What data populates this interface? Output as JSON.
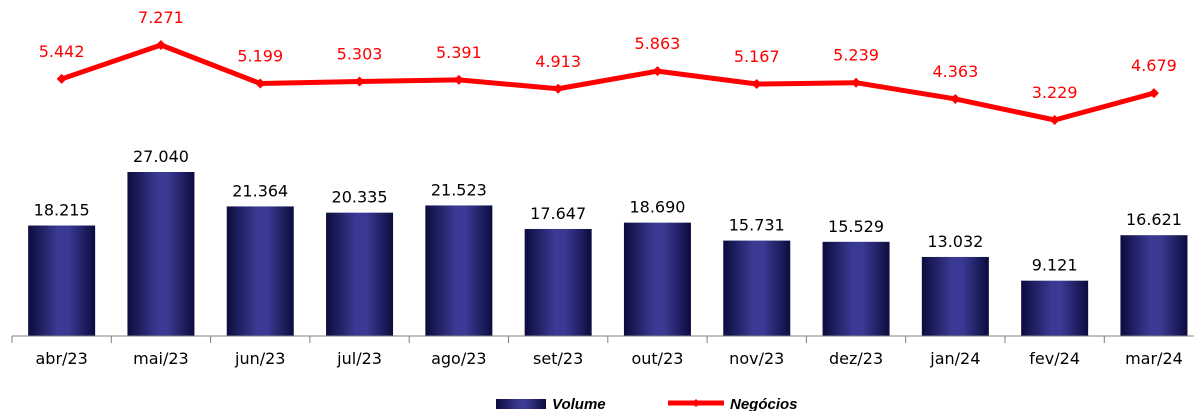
{
  "chart_data": {
    "type": "bar+line",
    "categories": [
      "abr/23",
      "mai/23",
      "jun/23",
      "jul/23",
      "ago/23",
      "set/23",
      "out/23",
      "nov/23",
      "dez/23",
      "jan/24",
      "fev/24",
      "mar/24"
    ],
    "series": [
      {
        "name": "Volume",
        "type": "bar",
        "color": "#2b2b7a",
        "values": [
          18215,
          27040,
          21364,
          20335,
          21523,
          17647,
          18690,
          15731,
          15529,
          13032,
          9121,
          16621
        ],
        "labels": [
          "18.215",
          "27.040",
          "21.364",
          "20.335",
          "21.523",
          "17.647",
          "18.690",
          "15.731",
          "15.529",
          "13.032",
          "9.121",
          "16.621"
        ]
      },
      {
        "name": "Negócios",
        "type": "line",
        "color": "#ff0000",
        "values": [
          5442,
          7271,
          5199,
          5303,
          5391,
          4913,
          5863,
          5167,
          5239,
          4363,
          3229,
          4679
        ],
        "labels": [
          "5.442",
          "7.271",
          "5.199",
          "5.303",
          "5.391",
          "4.913",
          "5.863",
          "5.167",
          "5.239",
          "4.363",
          "3.229",
          "4.679"
        ]
      }
    ],
    "title": "",
    "xlabel": "",
    "ylabel": "",
    "legend": "bottom"
  }
}
